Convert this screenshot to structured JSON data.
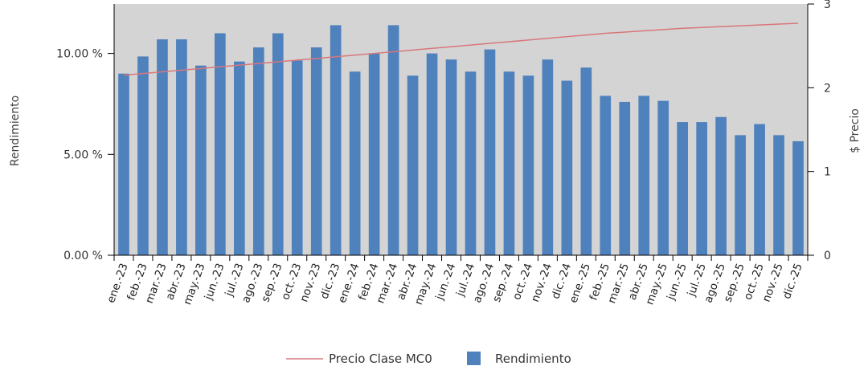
{
  "chart_data": {
    "type": "bar",
    "categories": [
      "ene.-23",
      "feb.-23",
      "mar.-23",
      "abr.-23",
      "may.-23",
      "jun.-23",
      "jul.-23",
      "ago.-23",
      "sep.-23",
      "oct.-23",
      "nov.-23",
      "dic.-23",
      "ene.-24",
      "feb.-24",
      "mar.-24",
      "abr.-24",
      "may.-24",
      "jun.-24",
      "jul.-24",
      "ago.-24",
      "sep.-24",
      "oct.-24",
      "nov.-24",
      "dic.-24",
      "ene.-25",
      "feb.-25",
      "mar.-25",
      "abr.-25",
      "may.-25",
      "jun.-25",
      "jul.-25",
      "ago.-25",
      "sep.-25",
      "oct.-25",
      "nov.-25",
      "dic.-25"
    ],
    "series": [
      {
        "name": "Rendimiento",
        "type": "bar",
        "axis": "left",
        "color": "#4f81bd",
        "values": [
          9.0,
          9.85,
          10.7,
          10.7,
          9.4,
          11.0,
          9.6,
          10.3,
          11.0,
          9.65,
          10.3,
          11.4,
          9.1,
          10.0,
          11.4,
          8.9,
          10.0,
          9.7,
          9.1,
          10.2,
          9.1,
          8.9,
          9.7,
          8.65,
          9.3,
          7.9,
          7.6,
          7.9,
          7.65,
          6.6,
          6.6,
          6.85,
          5.95,
          6.5,
          5.95,
          5.65
        ]
      },
      {
        "name": "Precio Clase MC0",
        "type": "line",
        "axis": "right",
        "color": "#d9777a",
        "values": [
          2.15,
          2.17,
          2.19,
          2.21,
          2.23,
          2.25,
          2.27,
          2.29,
          2.31,
          2.33,
          2.35,
          2.37,
          2.39,
          2.41,
          2.43,
          2.45,
          2.47,
          2.49,
          2.51,
          2.53,
          2.55,
          2.57,
          2.59,
          2.61,
          2.63,
          2.65,
          2.665,
          2.68,
          2.695,
          2.71,
          2.72,
          2.73,
          2.74,
          2.75,
          2.76,
          2.77
        ]
      }
    ],
    "y_left": {
      "label": "Rendimiento",
      "min": 0,
      "max": 12.45,
      "ticks": [
        0,
        5,
        10
      ],
      "tick_labels": [
        "0.00 %",
        "5.00 %",
        "10.00 %"
      ]
    },
    "y_right": {
      "label": "$ Precio",
      "min": 0,
      "max": 3,
      "ticks": [
        0,
        1,
        2,
        3
      ],
      "tick_labels": [
        "0",
        "1",
        "2",
        "3"
      ]
    },
    "grid": false,
    "plot_background": "#d4d4d4",
    "legend_position": "bottom",
    "legend": [
      {
        "label": "Precio Clase MC0",
        "kind": "line",
        "color": "#d9777a"
      },
      {
        "label": "Rendimiento",
        "kind": "bar",
        "color": "#4f81bd"
      }
    ]
  }
}
